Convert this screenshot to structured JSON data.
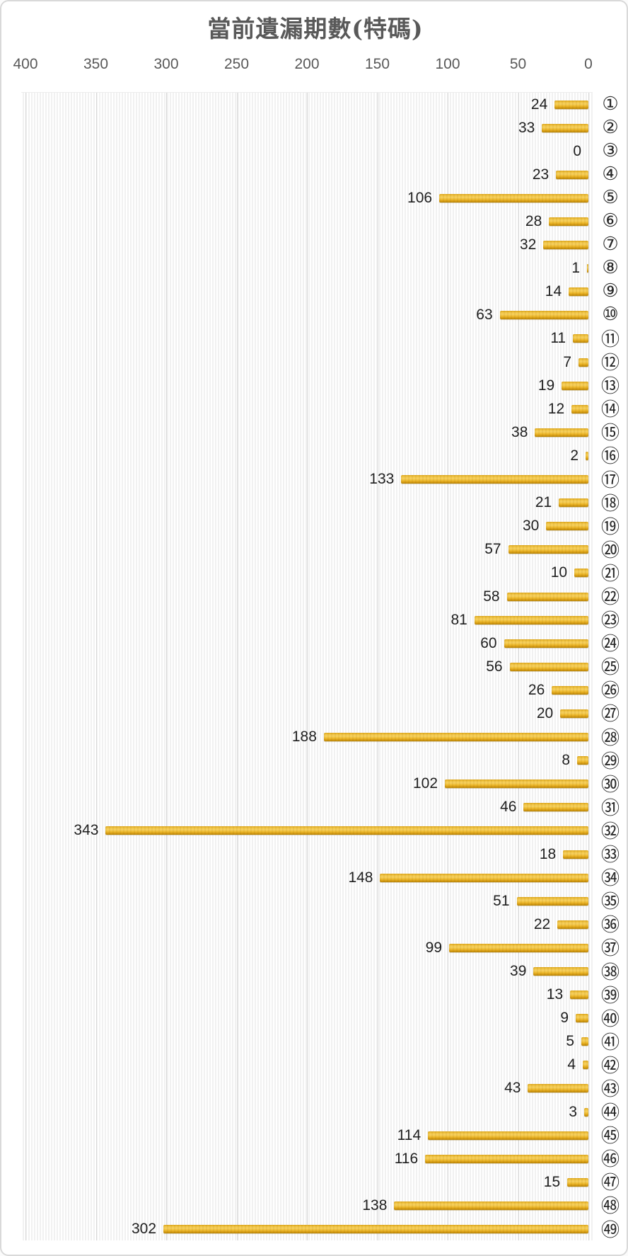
{
  "title": "當前遺漏期數(特碼)",
  "axis": {
    "tick_labels": [
      "400",
      "350",
      "300",
      "250",
      "200",
      "150",
      "100",
      "50",
      "0"
    ],
    "max": 400,
    "min": 0,
    "reversed": true
  },
  "colors": {
    "bar_main": "#eeba2e",
    "bar_dark_edge": "#b8860b",
    "bar_highlight": "#f7d160",
    "gridline": "#d7d7d7",
    "stripe": "#f1f1f1",
    "title_text": "#595959",
    "axis_text": "#595959",
    "value_text": "#1f1f1f",
    "category_text": "#262626",
    "card_border": "#d9d9d9",
    "background": "#ffffff"
  },
  "chart_data": {
    "type": "bar",
    "orientation": "horizontal",
    "title": "當前遺漏期數(特碼)",
    "xlabel": "",
    "ylabel": "",
    "xlim": [
      400,
      0
    ],
    "x_axis_position": "top",
    "x_axis_reversed": true,
    "grid": true,
    "legend": false,
    "value_labels": "outside-end",
    "categories": [
      "①",
      "②",
      "③",
      "④",
      "⑤",
      "⑥",
      "⑦",
      "⑧",
      "⑨",
      "⑩",
      "⑪",
      "⑫",
      "⑬",
      "⑭",
      "⑮",
      "⑯",
      "⑰",
      "⑱",
      "⑲",
      "⑳",
      "㉑",
      "㉒",
      "㉓",
      "㉔",
      "㉕",
      "㉖",
      "㉗",
      "㉘",
      "㉙",
      "㉚",
      "㉛",
      "㉜",
      "㉝",
      "㉞",
      "㉟",
      "㊱",
      "㊲",
      "㊳",
      "㊴",
      "㊵",
      "㊶",
      "㊷",
      "㊸",
      "㊹",
      "㊺",
      "㊻",
      "㊼",
      "㊽",
      "㊾"
    ],
    "values": [
      24,
      33,
      0,
      23,
      106,
      28,
      32,
      1,
      14,
      63,
      11,
      7,
      19,
      12,
      38,
      2,
      133,
      21,
      30,
      57,
      10,
      58,
      81,
      60,
      56,
      26,
      20,
      188,
      8,
      102,
      46,
      343,
      18,
      148,
      51,
      22,
      99,
      39,
      13,
      9,
      5,
      4,
      43,
      3,
      114,
      116,
      15,
      138,
      302
    ]
  }
}
